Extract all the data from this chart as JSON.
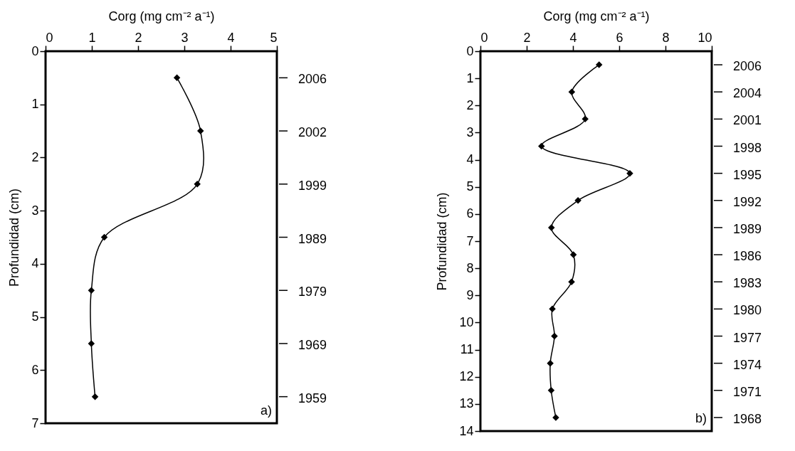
{
  "chart_data": [
    {
      "type": "line",
      "xlabel": "Corg (mg cm⁻² a⁻¹)",
      "ylabel": "Profundidad (cm)",
      "xlim": [
        0,
        5
      ],
      "xticks": [
        0,
        1,
        2,
        3,
        4,
        5
      ],
      "ylim": [
        7,
        0
      ],
      "yticks": [
        0,
        1,
        2,
        3,
        4,
        5,
        6,
        7
      ],
      "marker": "diamond",
      "grid": false,
      "annotations": [
        "a)",
        "2006",
        "2002",
        "1999",
        "1989",
        "1979",
        "1969",
        "1959"
      ],
      "series": [
        {
          "color": "#000000",
          "x": [
            2.84,
            3.35,
            3.28,
            1.27,
            0.99,
            0.99,
            1.07
          ],
          "values": [
            0.5,
            1.5,
            2.5,
            3.5,
            4.5,
            5.5,
            6.5
          ]
        }
      ]
    },
    {
      "type": "line",
      "xlabel": "Corg (mg cm⁻² a⁻¹)",
      "ylabel": "Profundidad (cm)",
      "xlim": [
        0,
        10
      ],
      "xticks": [
        0,
        2,
        4,
        6,
        8,
        10
      ],
      "ylim": [
        14,
        0
      ],
      "yticks": [
        0,
        1,
        2,
        3,
        4,
        5,
        6,
        7,
        8,
        9,
        10,
        11,
        12,
        13,
        14
      ],
      "marker": "diamond",
      "grid": false,
      "annotations": [
        "b)",
        "2006",
        "2004",
        "2001",
        "1998",
        "1995",
        "1992",
        "1989",
        "1986",
        "1983",
        "1980",
        "1977",
        "1974",
        "1971",
        "1968"
      ],
      "series": [
        {
          "color": "#000000",
          "x": [
            5.13,
            3.95,
            4.53,
            2.64,
            6.46,
            4.22,
            3.07,
            4.02,
            3.94,
            3.11,
            3.2,
            3.02,
            3.06,
            3.26
          ],
          "values": [
            0.5,
            1.5,
            2.5,
            3.5,
            4.5,
            5.5,
            6.5,
            7.5,
            8.5,
            9.5,
            10.5,
            11.5,
            12.5,
            13.5
          ]
        }
      ]
    }
  ]
}
